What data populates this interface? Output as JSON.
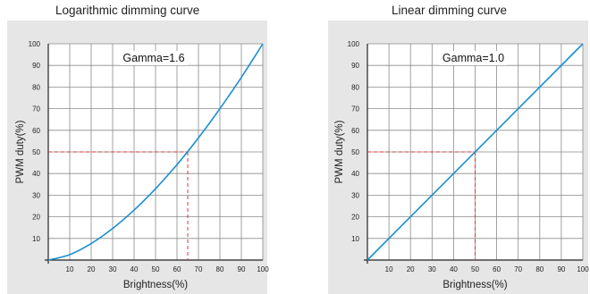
{
  "chart_data": [
    {
      "type": "line",
      "title": "Logarithmic dimming curve",
      "annotation": "Gamma=1.6",
      "xlabel": "Brightness(%)",
      "ylabel": "PWM duty(%)",
      "xlim": [
        0,
        100
      ],
      "ylim": [
        0,
        100
      ],
      "xticks": [
        10,
        20,
        30,
        40,
        50,
        60,
        70,
        80,
        90,
        100
      ],
      "yticks": [
        10,
        20,
        30,
        40,
        50,
        60,
        70,
        80,
        90,
        100
      ],
      "grid": true,
      "series": [
        {
          "x": [
            0,
            10,
            20,
            30,
            40,
            50,
            60,
            70,
            80,
            90,
            100
          ],
          "y": [
            0,
            2.5,
            7.6,
            14.6,
            23.1,
            33.0,
            44.1,
            56.5,
            70.0,
            84.5,
            100
          ]
        }
      ],
      "reference_point": {
        "x": 65,
        "y": 50
      },
      "line_color": "#1a8fd1",
      "reference_color": "#d93a3a"
    },
    {
      "type": "line",
      "title": "Linear dimming curve",
      "annotation": "Gamma=1.0",
      "xlabel": "Brightness(%)",
      "ylabel": "PWM duty(%)",
      "xlim": [
        0,
        100
      ],
      "ylim": [
        0,
        100
      ],
      "xticks": [
        10,
        20,
        30,
        40,
        50,
        60,
        70,
        80,
        90,
        100
      ],
      "yticks": [
        10,
        20,
        30,
        40,
        50,
        60,
        70,
        80,
        90,
        100
      ],
      "grid": true,
      "series": [
        {
          "x": [
            0,
            100
          ],
          "y": [
            0,
            100
          ]
        }
      ],
      "reference_point": {
        "x": 50,
        "y": 50
      },
      "line_color": "#1a8fd1",
      "reference_color": "#d93a3a"
    }
  ]
}
